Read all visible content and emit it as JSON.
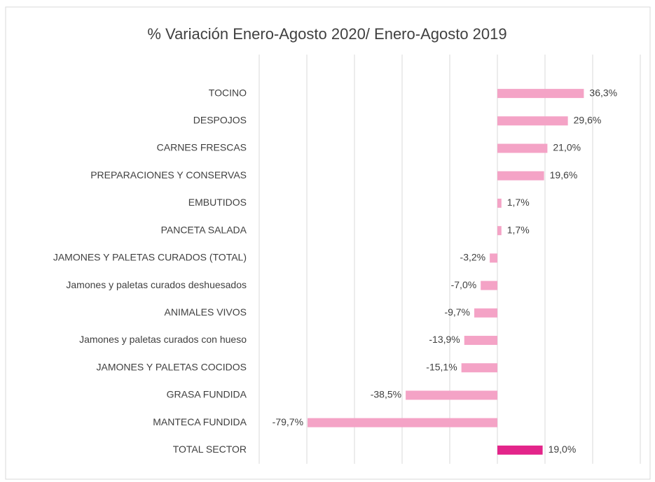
{
  "chart_data": {
    "type": "barh",
    "title": "% Variación Enero-Agosto 2020/ Enero-Agosto 2019",
    "categories": [
      "TOCINO",
      "DESPOJOS",
      "CARNES FRESCAS",
      "PREPARACIONES Y CONSERVAS",
      "EMBUTIDOS",
      "PANCETA SALADA",
      "JAMONES Y PALETAS CURADOS (TOTAL)",
      "Jamones y paletas curados deshuesados",
      "ANIMALES VIVOS",
      "Jamones y paletas curados con hueso",
      "JAMONES Y PALETAS COCIDOS",
      "GRASA FUNDIDA",
      "MANTECA FUNDIDA",
      "TOTAL SECTOR"
    ],
    "values": [
      36.3,
      29.6,
      21.0,
      19.6,
      1.7,
      1.7,
      -3.2,
      -7.0,
      -9.7,
      -13.9,
      -15.1,
      -38.5,
      -79.7,
      19.0
    ],
    "value_labels": [
      "36,3%",
      "29,6%",
      "21,0%",
      "19,6%",
      "1,7%",
      "1,7%",
      "-3,2%",
      "-7,0%",
      "-9,7%",
      "-13,9%",
      "-15,1%",
      "-38,5%",
      "-79,7%",
      "19,0%"
    ],
    "colors": [
      "#f4a3c6",
      "#f4a3c6",
      "#f4a3c6",
      "#f4a3c6",
      "#f4a3c6",
      "#f4a3c6",
      "#f4a3c6",
      "#f4a3c6",
      "#f4a3c6",
      "#f4a3c6",
      "#f4a3c6",
      "#f4a3c6",
      "#f4a3c6",
      "#e3258a"
    ],
    "xlim": [
      -100,
      60
    ],
    "xticks": [
      -100,
      -80,
      -60,
      -40,
      -20,
      0,
      20,
      40,
      60
    ],
    "grid": true
  }
}
